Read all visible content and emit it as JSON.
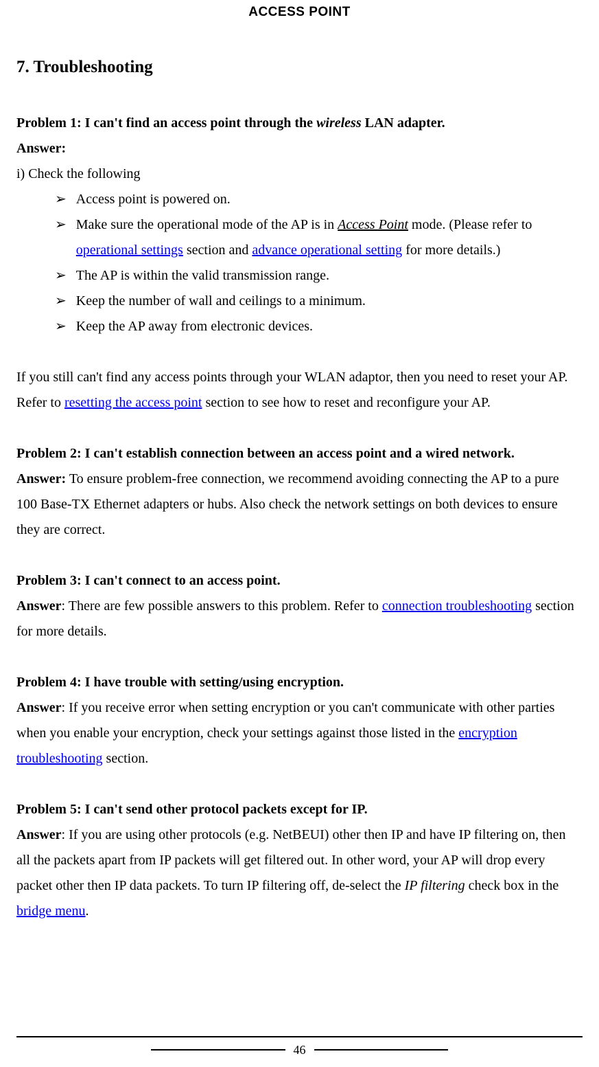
{
  "header": {
    "title": "ACCESS POINT"
  },
  "section": {
    "title": "7. Troubleshooting"
  },
  "p1": {
    "heading_prefix": "Problem 1: I can't find an access point through the ",
    "heading_em": "wireless",
    "heading_suffix": " LAN adapter.",
    "answer_label": "Answer:",
    "line_i": "i) Check the following",
    "bullets": {
      "b1": "Access point is powered on.",
      "b2_a": "Make sure the operational mode of the AP is in ",
      "b2_em": "Access Point",
      "b2_b": " mode. (Please refer to ",
      "b2_link1": "operational settings",
      "b2_c": " section and ",
      "b2_link2": "advance operational setting",
      "b2_d": " for more details.)",
      "b3": "The AP is within the valid transmission range.",
      "b4": "Keep the number of wall and ceilings to a minimum.",
      "b5": "Keep the AP away from electronic devices."
    },
    "tail_a": "If you still can't find any access points through your WLAN adaptor, then you need to reset your AP. Refer to ",
    "tail_link": "resetting the access point",
    "tail_b": " section to see how to reset and reconfigure your AP."
  },
  "p2": {
    "heading": "Problem 2: I can't establish connection between an access point and a wired network.",
    "answer_label": "Answer:",
    "body": " To ensure problem-free connection, we recommend avoiding connecting the AP to a pure 100 Base-TX Ethernet adapters or hubs. Also check the network settings on both devices to ensure they are correct."
  },
  "p3": {
    "heading": "Problem 3: I can't connect to an access point.",
    "answer_label": "Answer",
    "body_a": ": There are few possible answers to this problem. Refer to ",
    "link": "connection troubleshooting",
    "body_b": " section for more details."
  },
  "p4": {
    "heading": "Problem 4: I have trouble with setting/using encryption.",
    "answer_label": "Answer",
    "body_a": ": If you receive error when setting encryption or you can't communicate with other parties when you enable your encryption, check your settings against those listed in the ",
    "link": "encryption troubleshooting",
    "body_b": " section."
  },
  "p5": {
    "heading": "Problem 5: I can't send other protocol packets except for IP.",
    "answer_label": "Answer",
    "body_a": ": If you are using other protocols (e.g. NetBEUI) other then IP and have IP filtering on, then all the packets apart from IP packets will get filtered out. In other word, your AP will drop every packet other then IP data packets. To turn IP filtering off, de-select the ",
    "em": "IP filtering",
    "body_b": " check box in the ",
    "link": "bridge menu",
    "body_c": "."
  },
  "footer": {
    "page_number": "46"
  },
  "bullet_glyph": "➢"
}
